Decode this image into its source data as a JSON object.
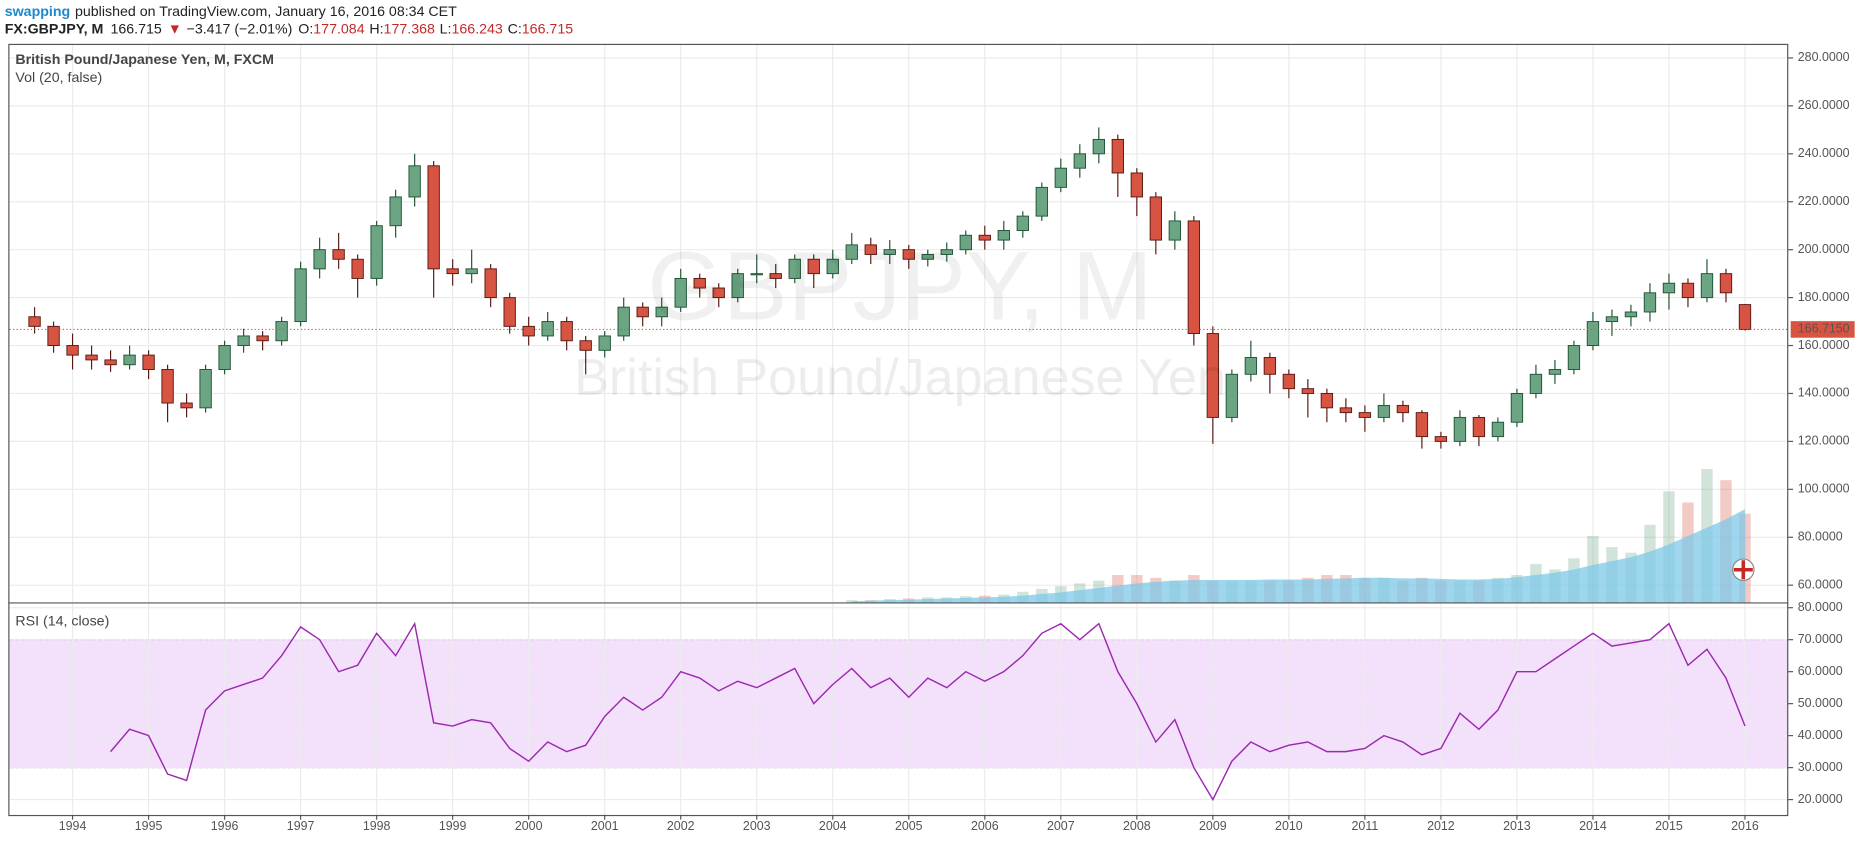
{
  "header": {
    "user": "swapping",
    "published": "published on TradingView.com, January 16, 2016 08:34 CET",
    "symbol": "FX:GBPJPY, M",
    "last": "166.715",
    "arrow": "▼",
    "change": "−3.417 (−2.01%)",
    "ohlc": [
      {
        "label": "O:",
        "value": "177.084"
      },
      {
        "label": "H:",
        "value": "177.368"
      },
      {
        "label": "L:",
        "value": "166.243"
      },
      {
        "label": "C:",
        "value": "166.715"
      }
    ]
  },
  "watermark": [
    "GBPJPY, M",
    "British Pound/Japanese Yen"
  ],
  "chart_data": {
    "type": "candlestick",
    "title": "British Pound/Japanese Yen, M, FXCM",
    "x": [
      1993.5,
      1993.75,
      1994,
      1994.25,
      1994.5,
      1994.75,
      1995,
      1995.25,
      1995.5,
      1995.75,
      1996,
      1996.25,
      1996.5,
      1996.75,
      1997,
      1997.25,
      1997.5,
      1997.75,
      1998,
      1998.25,
      1998.5,
      1998.75,
      1999,
      1999.25,
      1999.5,
      1999.75,
      2000,
      2000.25,
      2000.5,
      2000.75,
      2001,
      2001.25,
      2001.5,
      2001.75,
      2002,
      2002.25,
      2002.5,
      2002.75,
      2003,
      2003.25,
      2003.5,
      2003.75,
      2004,
      2004.25,
      2004.5,
      2004.75,
      2005,
      2005.25,
      2005.5,
      2005.75,
      2006,
      2006.25,
      2006.5,
      2006.75,
      2007,
      2007.25,
      2007.5,
      2007.75,
      2008,
      2008.25,
      2008.5,
      2008.75,
      2009,
      2009.25,
      2009.5,
      2009.75,
      2010,
      2010.25,
      2010.5,
      2010.75,
      2011,
      2011.25,
      2011.5,
      2011.75,
      2012,
      2012.25,
      2012.5,
      2012.75,
      2013,
      2013.25,
      2013.5,
      2013.75,
      2014,
      2014.25,
      2014.5,
      2014.75,
      2015,
      2015.25,
      2015.5,
      2015.75,
      2016
    ],
    "open": [
      172,
      168,
      160,
      156,
      154,
      152,
      156,
      150,
      136,
      134,
      150,
      160,
      164,
      162,
      170,
      192,
      200,
      196,
      188,
      210,
      222,
      235,
      192,
      190,
      192,
      180,
      168,
      164,
      170,
      162,
      158,
      164,
      176,
      172,
      176,
      188,
      184,
      180,
      190,
      190,
      188,
      196,
      190,
      196,
      202,
      198,
      200,
      196,
      198,
      200,
      206,
      204,
      208,
      214,
      226,
      234,
      240,
      246,
      232,
      222,
      204,
      212,
      165,
      130,
      148,
      155,
      148,
      142,
      140,
      134,
      132,
      130,
      135,
      132,
      122,
      120,
      130,
      122,
      128,
      140,
      148,
      150,
      160,
      170,
      172,
      174,
      182,
      186,
      180,
      190,
      177.084
    ],
    "high": [
      176,
      170,
      165,
      160,
      158,
      160,
      158,
      152,
      140,
      152,
      162,
      167,
      166,
      172,
      195,
      205,
      207,
      198,
      212,
      225,
      240,
      237,
      196,
      200,
      194,
      182,
      172,
      174,
      172,
      164,
      166,
      180,
      178,
      180,
      192,
      190,
      186,
      192,
      198,
      194,
      198,
      198,
      200,
      207,
      205,
      204,
      202,
      200,
      203,
      208,
      210,
      212,
      216,
      228,
      238,
      244,
      251,
      248,
      234,
      224,
      216,
      214,
      168,
      150,
      162,
      157,
      150,
      146,
      142,
      138,
      135,
      140,
      137,
      133,
      124,
      133,
      131,
      130,
      142,
      152,
      154,
      162,
      174,
      175,
      177,
      186,
      190,
      188,
      196,
      192,
      177.368
    ],
    "low": [
      165,
      157,
      150,
      150,
      149,
      150,
      146,
      128,
      130,
      132,
      148,
      157,
      158,
      160,
      168,
      188,
      192,
      180,
      185,
      205,
      218,
      180,
      185,
      186,
      176,
      165,
      160,
      162,
      158,
      148,
      155,
      162,
      168,
      168,
      174,
      180,
      176,
      178,
      186,
      184,
      186,
      184,
      188,
      194,
      194,
      194,
      192,
      193,
      195,
      198,
      200,
      200,
      205,
      212,
      224,
      230,
      236,
      222,
      214,
      198,
      200,
      160,
      119,
      128,
      145,
      140,
      138,
      130,
      128,
      128,
      124,
      128,
      128,
      117,
      117,
      118,
      118,
      120,
      126,
      138,
      144,
      148,
      158,
      164,
      168,
      170,
      175,
      176,
      178,
      178,
      166.243
    ],
    "close": [
      168,
      160,
      156,
      154,
      152,
      156,
      150,
      136,
      134,
      150,
      160,
      164,
      162,
      170,
      192,
      200,
      196,
      188,
      210,
      222,
      235,
      192,
      190,
      192,
      180,
      168,
      164,
      170,
      162,
      158,
      164,
      176,
      172,
      176,
      188,
      184,
      180,
      190,
      190,
      188,
      196,
      190,
      196,
      202,
      198,
      200,
      196,
      198,
      200,
      206,
      204,
      208,
      214,
      226,
      234,
      240,
      246,
      232,
      222,
      204,
      212,
      165,
      130,
      148,
      155,
      148,
      142,
      140,
      134,
      132,
      130,
      135,
      132,
      122,
      120,
      130,
      122,
      128,
      140,
      148,
      150,
      160,
      170,
      172,
      174,
      182,
      186,
      180,
      190,
      182,
      166.715
    ],
    "xlim": [
      1993.17,
      2016.57
    ],
    "xticks": [
      1994,
      1995,
      1996,
      1997,
      1998,
      1999,
      2000,
      2001,
      2002,
      2003,
      2004,
      2005,
      2006,
      2007,
      2008,
      2009,
      2010,
      2011,
      2012,
      2013,
      2014,
      2015,
      2016
    ],
    "ylim": [
      52.6,
      285.4
    ],
    "yticks": [
      {
        "value": 60,
        "label": "60.0000"
      },
      {
        "value": 80,
        "label": "80.0000"
      },
      {
        "value": 100,
        "label": "100.0000"
      },
      {
        "value": 120,
        "label": "120.0000"
      },
      {
        "value": 140,
        "label": "140.0000"
      },
      {
        "value": 160,
        "label": "160.0000"
      },
      {
        "value": 180,
        "label": "180.0000"
      },
      {
        "value": 200,
        "label": "200.0000"
      },
      {
        "value": 220,
        "label": "220.0000"
      },
      {
        "value": 240,
        "label": "240.0000"
      },
      {
        "value": 260,
        "label": "260.0000"
      },
      {
        "value": 280,
        "label": "280.0000"
      }
    ],
    "grid": true,
    "colors": {
      "up": "#6ba583",
      "down": "#d75442"
    },
    "last_price": {
      "value": 166.715,
      "label": "166.7150"
    },
    "volume": {
      "name": "Vol (20, false)",
      "ylim": [
        0,
        100
      ],
      "ma_color": "#7ec8e8",
      "values": [
        null,
        null,
        null,
        null,
        null,
        null,
        null,
        null,
        null,
        null,
        null,
        null,
        null,
        null,
        null,
        null,
        null,
        null,
        null,
        null,
        null,
        null,
        null,
        null,
        null,
        null,
        null,
        null,
        null,
        null,
        null,
        null,
        null,
        null,
        null,
        null,
        null,
        null,
        null,
        null,
        null,
        null,
        null,
        0.5,
        0.5,
        0.7,
        0.8,
        1,
        1,
        1.2,
        1.3,
        1.5,
        2,
        2.5,
        3,
        3.5,
        4,
        5,
        5,
        4.5,
        4,
        5,
        4,
        4,
        4,
        4,
        4,
        4.5,
        5,
        5,
        4.5,
        4.5,
        4,
        4.5,
        4,
        4,
        4,
        4.5,
        5,
        7,
        6,
        8,
        12,
        10,
        9,
        14,
        20,
        18,
        24,
        22,
        16
      ],
      "ma": [
        null,
        null,
        null,
        null,
        null,
        null,
        null,
        null,
        null,
        null,
        null,
        null,
        null,
        null,
        null,
        null,
        null,
        null,
        null,
        null,
        null,
        null,
        null,
        null,
        null,
        null,
        null,
        null,
        null,
        null,
        null,
        null,
        null,
        null,
        null,
        null,
        null,
        null,
        null,
        null,
        null,
        null,
        null,
        0.3,
        0.4,
        0.5,
        0.6,
        0.7,
        0.8,
        0.9,
        1,
        1.1,
        1.3,
        1.6,
        1.9,
        2.3,
        2.7,
        3.1,
        3.5,
        3.8,
        4,
        4.1,
        4.1,
        4.1,
        4.1,
        4.2,
        4.2,
        4.2,
        4.3,
        4.4,
        4.5,
        4.5,
        4.4,
        4.4,
        4.3,
        4.2,
        4.2,
        4.3,
        4.6,
        5,
        5.4,
        6,
        6.8,
        7.5,
        8.2,
        9.2,
        10.5,
        12,
        13.5,
        15,
        16.8
      ]
    },
    "rsi": {
      "name": "RSI (14, close)",
      "color": "#9c27b0",
      "band_color": "#f3e1fb",
      "bands": [
        30,
        70
      ],
      "ylim": [
        15.2,
        81.5
      ],
      "yticks": [
        {
          "value": 20,
          "label": "20.0000"
        },
        {
          "value": 30,
          "label": "30.0000"
        },
        {
          "value": 40,
          "label": "40.0000"
        },
        {
          "value": 50,
          "label": "50.0000"
        },
        {
          "value": 60,
          "label": "60.0000"
        },
        {
          "value": 70,
          "label": "70.0000"
        },
        {
          "value": 80,
          "label": "80.0000"
        }
      ],
      "values": [
        null,
        null,
        null,
        null,
        35,
        42,
        40,
        28,
        26,
        48,
        54,
        56,
        58,
        65,
        74,
        70,
        60,
        62,
        72,
        65,
        75,
        44,
        43,
        45,
        44,
        36,
        32,
        38,
        35,
        37,
        46,
        52,
        48,
        52,
        60,
        58,
        54,
        57,
        55,
        58,
        61,
        50,
        56,
        61,
        55,
        58,
        52,
        58,
        55,
        60,
        57,
        60,
        65,
        72,
        75,
        70,
        75,
        60,
        50,
        38,
        45,
        30,
        20,
        32,
        38,
        35,
        37,
        38,
        35,
        35,
        36,
        40,
        38,
        34,
        36,
        47,
        42,
        48,
        60,
        60,
        64,
        68,
        72,
        68,
        69,
        70,
        75,
        62,
        67,
        58,
        43
      ]
    }
  }
}
